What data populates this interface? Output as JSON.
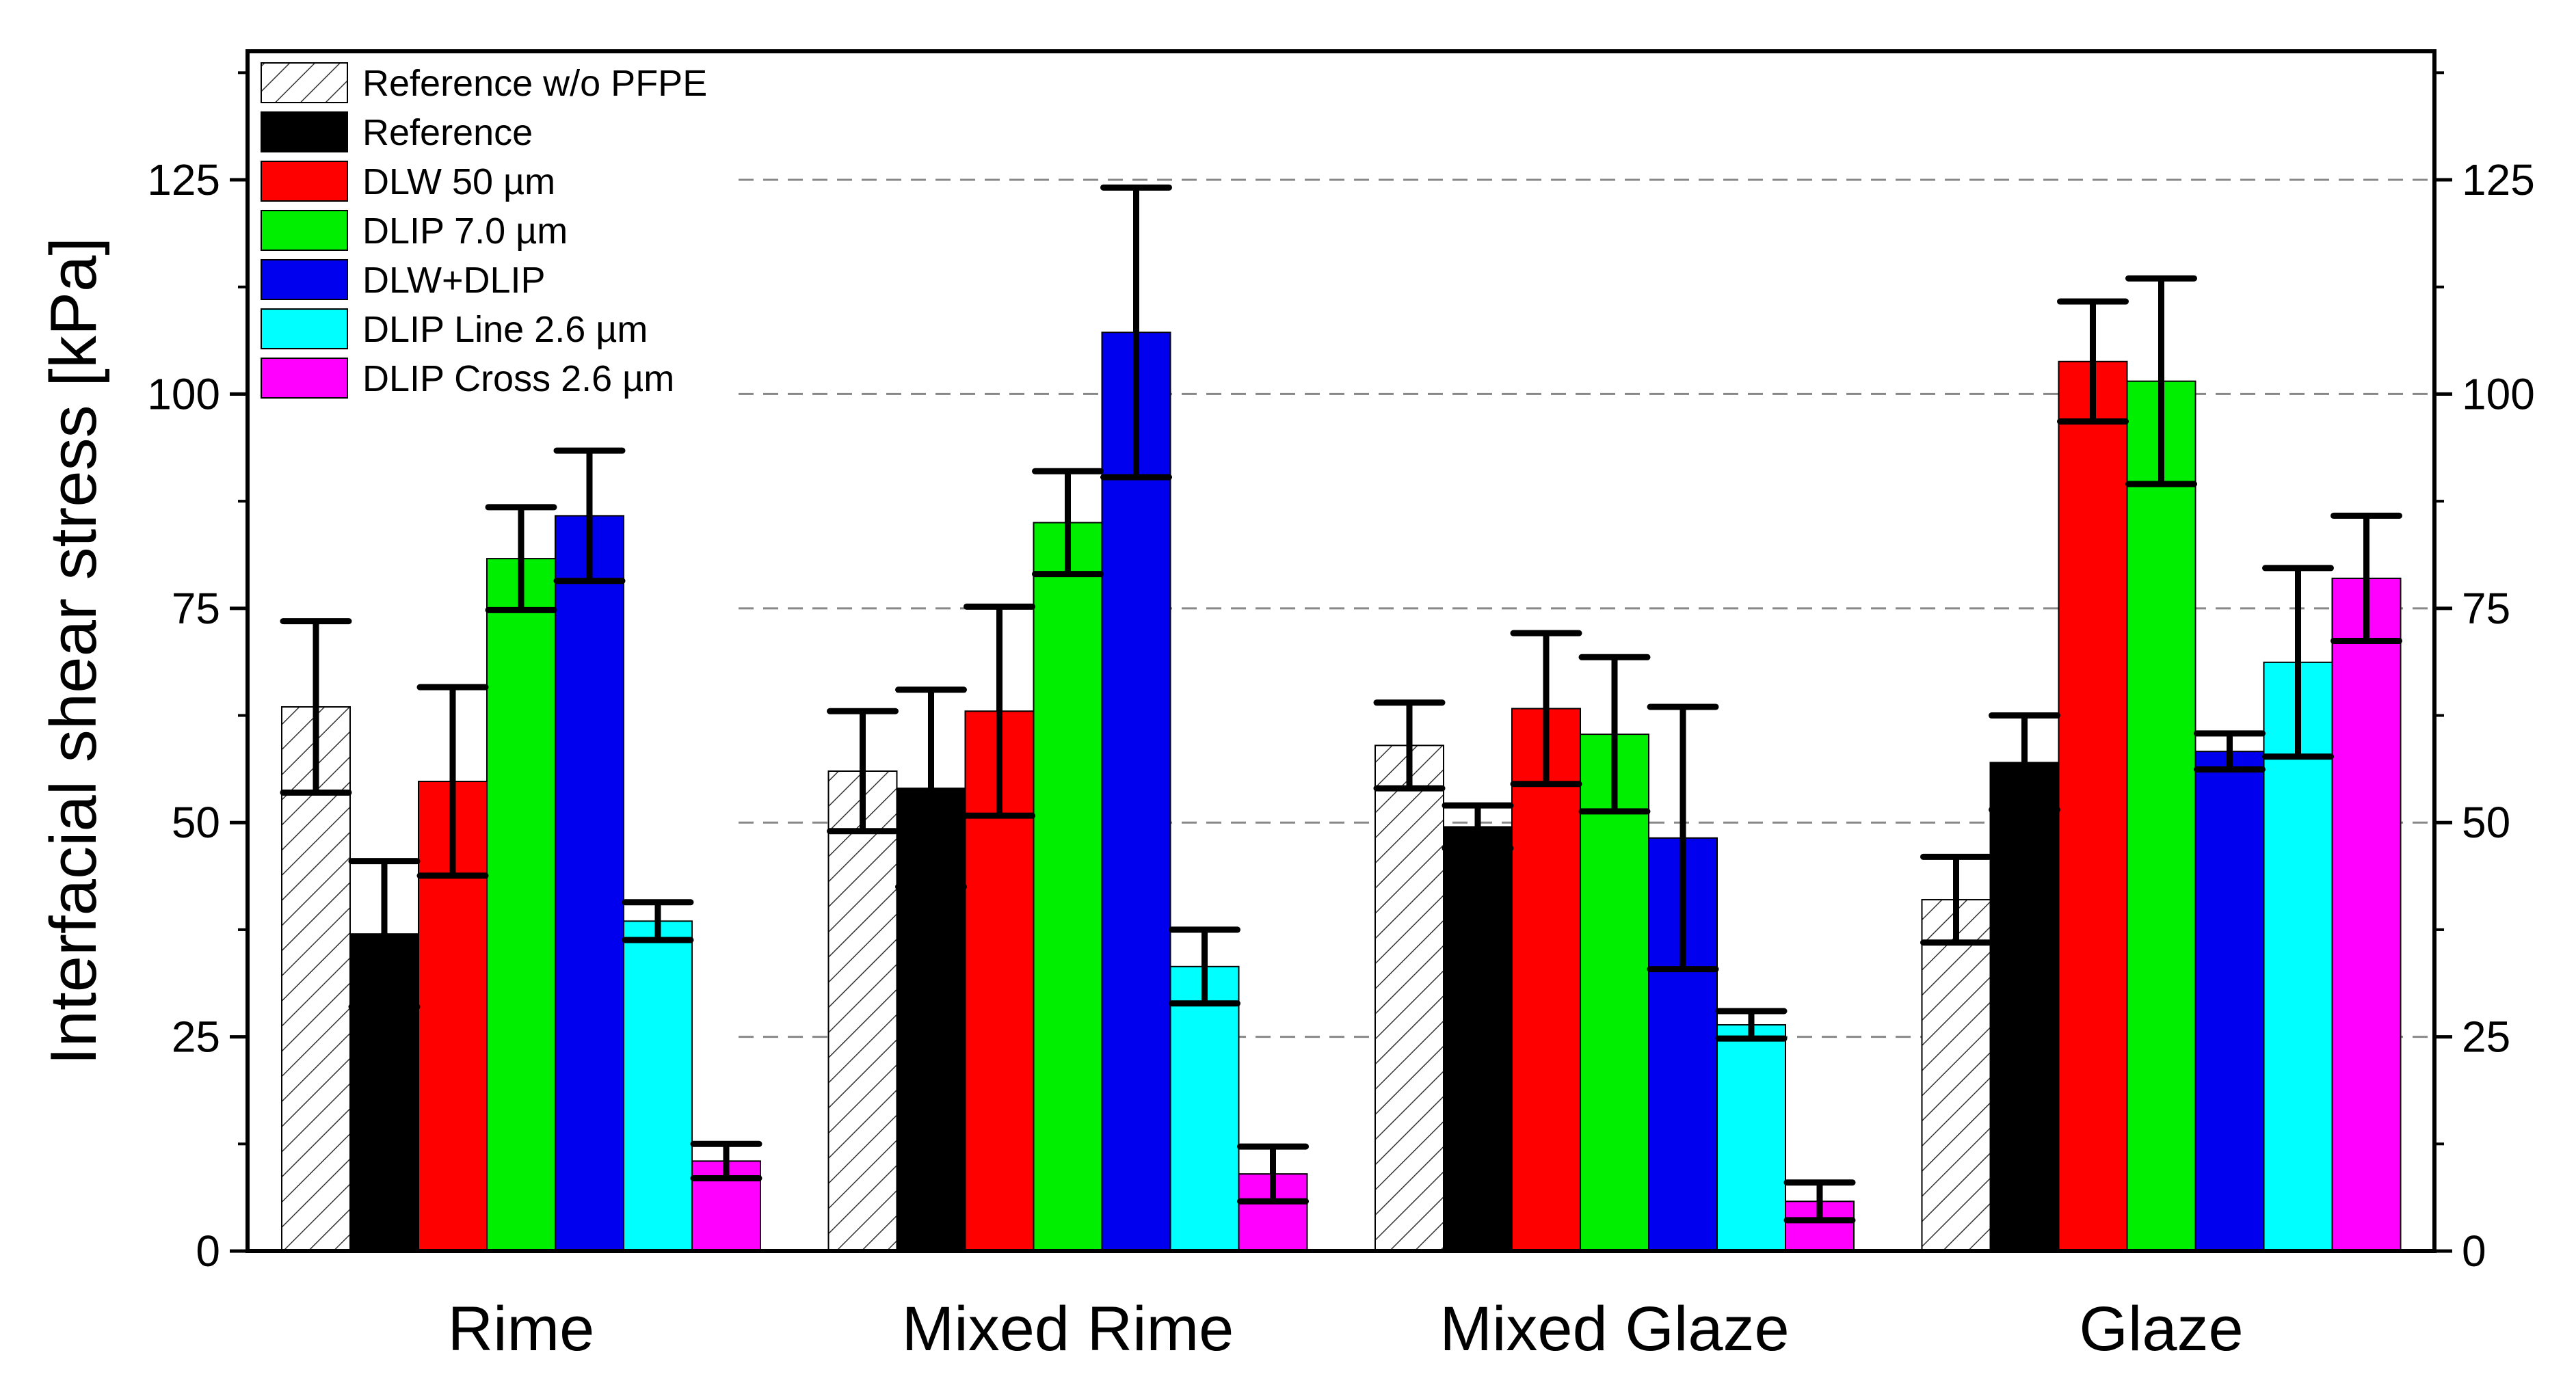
{
  "chart_data": {
    "type": "bar",
    "ylabel": "Interfacial shear stress [kPa]",
    "xlabel": "",
    "ylim": [
      0,
      140
    ],
    "yticks": [
      0,
      25,
      50,
      75,
      100,
      125
    ],
    "secondary_y_axis": true,
    "grid": "horizontal dashed, right portion",
    "legend_position": "top-left",
    "categories": [
      "Rime",
      "Mixed Rime",
      "Mixed Glaze",
      "Glaze"
    ],
    "series": [
      {
        "name": "Reference w/o PFPE",
        "color": "#ffffff",
        "hatch": true,
        "values": [
          63.5,
          56,
          59,
          41
        ],
        "errors": [
          10,
          7,
          5,
          5
        ]
      },
      {
        "name": "Reference",
        "color": "#000000",
        "values": [
          37,
          54,
          49.5,
          57
        ],
        "errors": [
          8.5,
          11.5,
          2.5,
          5.5
        ]
      },
      {
        "name": "DLW 50 µm",
        "color": "#ff0000",
        "values": [
          54.8,
          63,
          63.3,
          103.8
        ],
        "errors": [
          11,
          12.2,
          8.8,
          7
        ]
      },
      {
        "name": "DLIP 7.0 µm",
        "color": "#00ee00",
        "values": [
          80.8,
          85,
          60.3,
          101.5
        ],
        "errors": [
          6,
          6,
          9,
          12
        ]
      },
      {
        "name": "DLW+DLIP",
        "color": "#0000ee",
        "values": [
          85.8,
          107.2,
          48.2,
          58.3
        ],
        "errors": [
          7.6,
          16.9,
          15.3,
          2.1
        ]
      },
      {
        "name": "DLIP Line 2.6 µm",
        "color": "#00ffff",
        "values": [
          38.5,
          33.2,
          26.4,
          68.7
        ],
        "errors": [
          2.2,
          4.3,
          1.6,
          11
        ]
      },
      {
        "name": "DLIP Cross 2.6 µm",
        "color": "#ff00ff",
        "values": [
          10.5,
          9,
          5.8,
          78.5
        ],
        "errors": [
          2,
          3.2,
          2.2,
          7.3
        ]
      }
    ]
  }
}
